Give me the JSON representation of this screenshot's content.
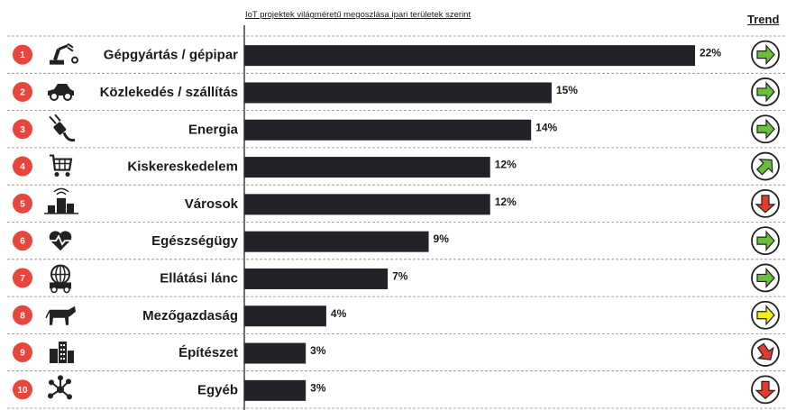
{
  "chart_data": {
    "type": "bar",
    "title": "IoT projektek világméretű megoszlása ipari területek szerint",
    "trend_header": "Trend",
    "categories": [
      "Gépgyártás / gépipar",
      "Közlekedés / szállítás",
      "Energia",
      "Kiskereskedelem",
      "Városok",
      "Egészségügy",
      "Ellátási lánc",
      "Mezőgazdaság",
      "Építészet",
      "Egyéb"
    ],
    "ranks": [
      "1",
      "2",
      "3",
      "4",
      "5",
      "6",
      "7",
      "8",
      "9",
      "10"
    ],
    "values": [
      22,
      15,
      14,
      12,
      12,
      9,
      7,
      4,
      3,
      3
    ],
    "value_labels": [
      "22%",
      "15%",
      "14%",
      "12%",
      "12%",
      "9%",
      "7%",
      "4%",
      "3%",
      "3%"
    ],
    "trends": [
      "right",
      "right",
      "right",
      "up-right",
      "down",
      "right",
      "right",
      "right",
      "down-right",
      "down"
    ],
    "icons": [
      "robot-arm-icon",
      "car-icon",
      "plug-icon",
      "shopping-cart-icon",
      "city-icon",
      "heart-pulse-icon",
      "globe-truck-icon",
      "cow-icon",
      "buildings-icon",
      "network-icon"
    ],
    "xlim": [
      0,
      22
    ],
    "grid": false,
    "colors": {
      "bar": "#232229",
      "rank_badge": "#e8453c",
      "trend_green": "#6abf3a",
      "trend_yellow": "#f2ec1c",
      "trend_red": "#e23b2f"
    }
  }
}
